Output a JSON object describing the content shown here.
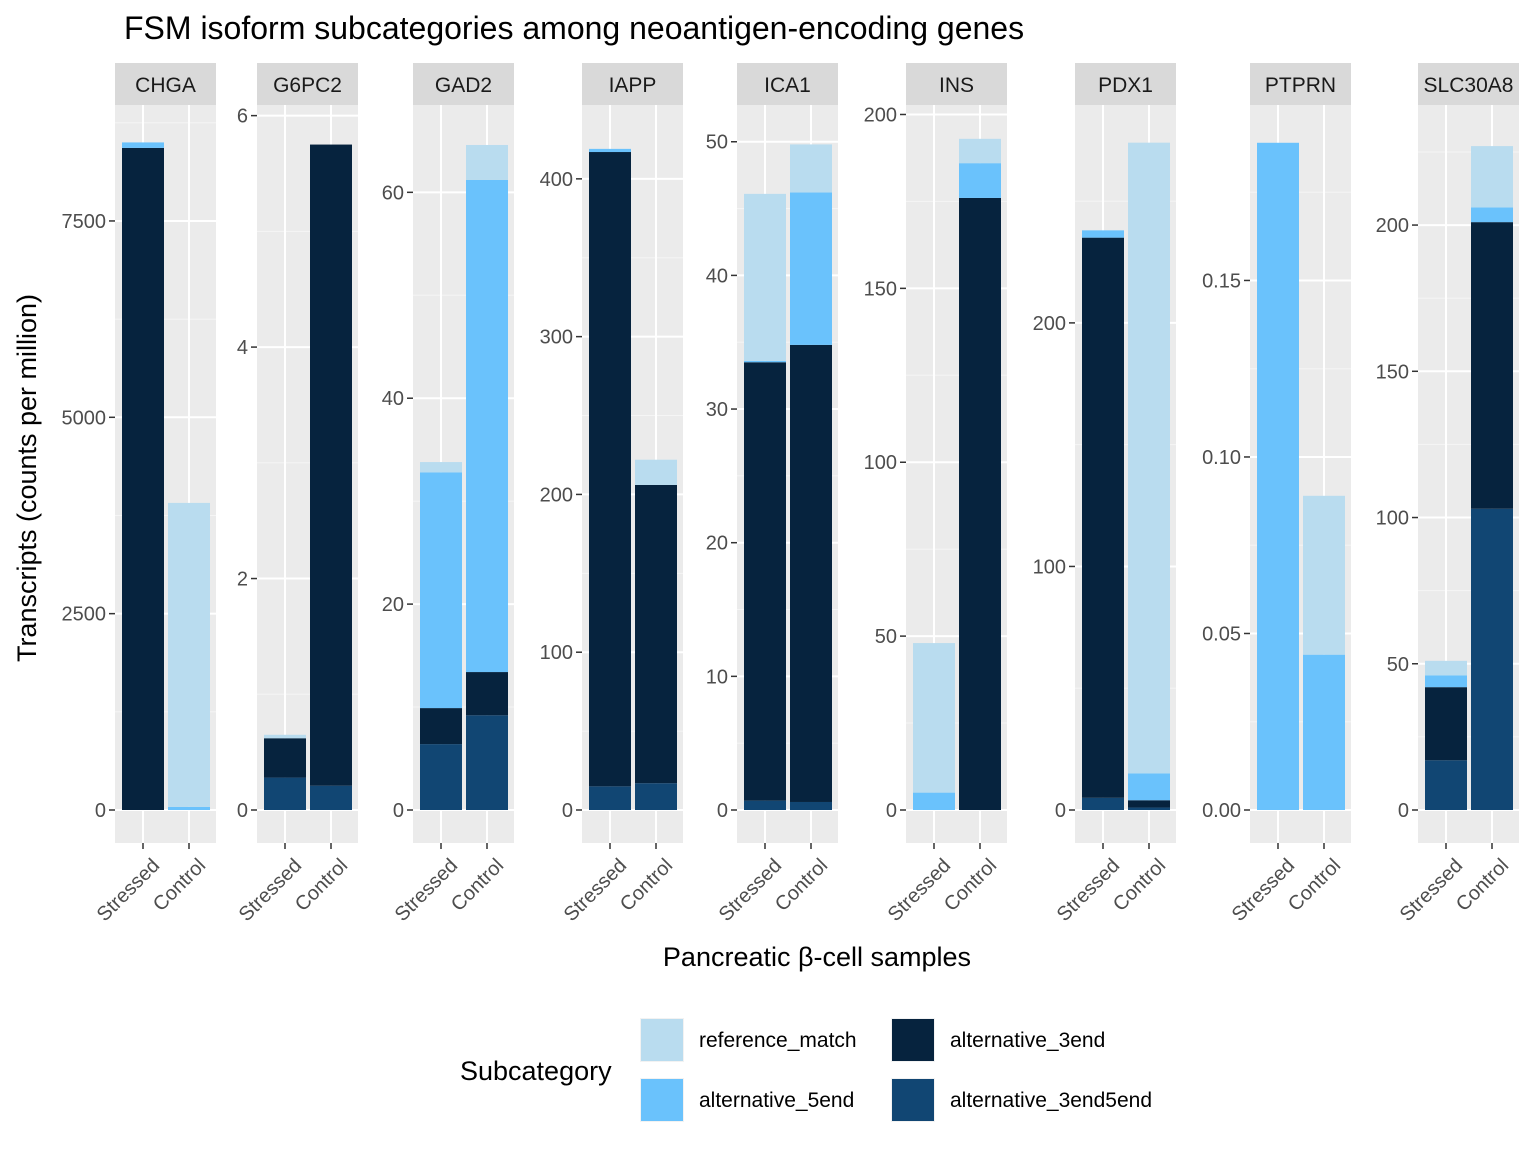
{
  "chart_data": {
    "type": "bar",
    "stacked": true,
    "title": "FSM isoform subcategories among neoantigen-encoding genes",
    "xlabel": "Pancreatic β-cell samples",
    "ylabel": "Transcripts (counts per million)",
    "categories": [
      "Stressed",
      "Control"
    ],
    "legend": {
      "title": "Subcategory",
      "position": "bottom",
      "items": [
        {
          "name": "reference_match",
          "color": "#b9dcef"
        },
        {
          "name": "alternative_5end",
          "color": "#6ac2fc"
        },
        {
          "name": "alternative_3end",
          "color": "#06233e"
        },
        {
          "name": "alternative_3end5end",
          "color": "#114673"
        }
      ]
    },
    "stack_order": [
      "alternative_3end5end",
      "alternative_3end",
      "alternative_5end",
      "reference_match"
    ],
    "facets": [
      {
        "name": "CHGA",
        "ylim": [
          0,
          8900
        ],
        "yticks": [
          0,
          2500,
          5000,
          7500
        ],
        "values": {
          "Stressed": {
            "reference_match": 0,
            "alternative_5end": 70,
            "alternative_3end": 8430,
            "alternative_3end5end": 0
          },
          "Control": {
            "reference_match": 3870,
            "alternative_5end": 40,
            "alternative_3end": 0,
            "alternative_3end5end": 0
          }
        }
      },
      {
        "name": "G6PC2",
        "ylim": [
          0,
          6.04
        ],
        "yticks": [
          0,
          2,
          4,
          6
        ],
        "values": {
          "Stressed": {
            "reference_match": 0.03,
            "alternative_5end": 0,
            "alternative_3end": 0.34,
            "alternative_3end5end": 0.28
          },
          "Control": {
            "reference_match": 0,
            "alternative_5end": 0,
            "alternative_3end": 5.54,
            "alternative_3end5end": 0.21
          }
        }
      },
      {
        "name": "GAD2",
        "ylim": [
          0,
          67.9
        ],
        "yticks": [
          0,
          20,
          40,
          60
        ],
        "values": {
          "Stressed": {
            "reference_match": 1.0,
            "alternative_5end": 22.9,
            "alternative_3end": 3.5,
            "alternative_3end5end": 6.4
          },
          "Control": {
            "reference_match": 3.4,
            "alternative_5end": 47.8,
            "alternative_3end": 4.2,
            "alternative_3end5end": 9.2
          }
        }
      },
      {
        "name": "IAPP",
        "ylim": [
          0,
          443
        ],
        "yticks": [
          0,
          100,
          200,
          300,
          400
        ],
        "values": {
          "Stressed": {
            "reference_match": 0,
            "alternative_5end": 2,
            "alternative_3end": 402,
            "alternative_3end5end": 15
          },
          "Control": {
            "reference_match": 16,
            "alternative_5end": 0,
            "alternative_3end": 189,
            "alternative_3end5end": 17
          }
        }
      },
      {
        "name": "ICA1",
        "ylim": [
          0,
          52.3
        ],
        "yticks": [
          0,
          10,
          20,
          30,
          40,
          50
        ],
        "values": {
          "Stressed": {
            "reference_match": 12.5,
            "alternative_5end": 0.1,
            "alternative_3end": 32.8,
            "alternative_3end5end": 0.7
          },
          "Control": {
            "reference_match": 3.6,
            "alternative_5end": 11.4,
            "alternative_3end": 34.2,
            "alternative_3end5end": 0.6
          }
        }
      },
      {
        "name": "INS",
        "ylim": [
          0,
          201
        ],
        "yticks": [
          0,
          50,
          100,
          150,
          200
        ],
        "values": {
          "Stressed": {
            "reference_match": 43,
            "alternative_5end": 5,
            "alternative_3end": 0,
            "alternative_3end5end": 0
          },
          "Control": {
            "reference_match": 7,
            "alternative_5end": 10,
            "alternative_3end": 176,
            "alternative_3end5end": 0
          }
        }
      },
      {
        "name": "PDX1",
        "ylim": [
          0,
          287
        ],
        "yticks": [
          0,
          100,
          200
        ],
        "values": {
          "Stressed": {
            "reference_match": 0,
            "alternative_5end": 3,
            "alternative_3end": 230,
            "alternative_3end5end": 5
          },
          "Control": {
            "reference_match": 259,
            "alternative_5end": 11,
            "alternative_3end": 3,
            "alternative_3end5end": 1
          }
        }
      },
      {
        "name": "PTPRN",
        "ylim": [
          0,
          0.198
        ],
        "yticks": [
          0.0,
          0.05,
          0.1,
          0.15
        ],
        "ytick_labels": [
          "0.00",
          "0.05",
          "0.10",
          "0.15"
        ],
        "values": {
          "Stressed": {
            "reference_match": 0,
            "alternative_5end": 0.189,
            "alternative_3end": 0,
            "alternative_3end5end": 0
          },
          "Control": {
            "reference_match": 0.045,
            "alternative_5end": 0.044,
            "alternative_3end": 0,
            "alternative_3end5end": 0
          }
        }
      },
      {
        "name": "SLC30A8",
        "ylim": [
          0,
          239
        ],
        "yticks": [
          0,
          50,
          100,
          150,
          200
        ],
        "values": {
          "Stressed": {
            "reference_match": 5,
            "alternative_5end": 4,
            "alternative_3end": 25,
            "alternative_3end5end": 17
          },
          "Control": {
            "reference_match": 21,
            "alternative_5end": 5,
            "alternative_3end": 98,
            "alternative_3end5end": 103
          }
        }
      }
    ]
  }
}
